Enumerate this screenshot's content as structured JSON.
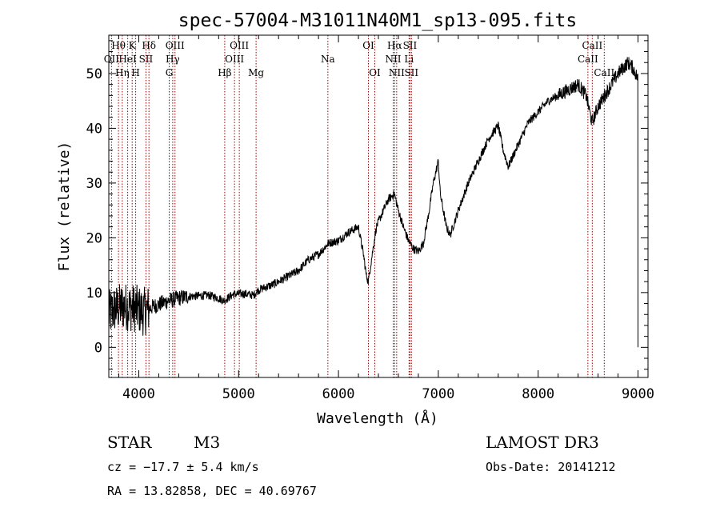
{
  "chart_data": {
    "type": "line",
    "title": "spec-57004-M31011N40M1_sp13-095.fits",
    "xlabel": "Wavelength (Å)",
    "ylabel": "Flux (relative)",
    "xlim": [
      3700,
      9100
    ],
    "ylim": [
      -5.5,
      57
    ],
    "xticks": [
      4000,
      5000,
      6000,
      7000,
      8000,
      9000
    ],
    "yticks": [
      0,
      10,
      20,
      30,
      40,
      50
    ],
    "line_color": "#000000",
    "marker_color": "#a00000",
    "spectrum_anchors": [
      [
        3700,
        6
      ],
      [
        3760,
        7
      ],
      [
        3850,
        7.5
      ],
      [
        3950,
        7.2
      ],
      [
        4050,
        6.5
      ],
      [
        4150,
        7.5
      ],
      [
        4300,
        8.5
      ],
      [
        4400,
        9
      ],
      [
        4500,
        9.3
      ],
      [
        4700,
        9.5
      ],
      [
        4800,
        9
      ],
      [
        4850,
        8.5
      ],
      [
        4950,
        9.7
      ],
      [
        5050,
        9.8
      ],
      [
        5150,
        9.5
      ],
      [
        5200,
        10.5
      ],
      [
        5350,
        11.5
      ],
      [
        5500,
        13
      ],
      [
        5600,
        14
      ],
      [
        5700,
        16
      ],
      [
        5800,
        17
      ],
      [
        5900,
        19
      ],
      [
        6000,
        19.5
      ],
      [
        6100,
        21
      ],
      [
        6200,
        22
      ],
      [
        6250,
        17
      ],
      [
        6280,
        13
      ],
      [
        6300,
        12
      ],
      [
        6330,
        16
      ],
      [
        6380,
        22
      ],
      [
        6450,
        25
      ],
      [
        6500,
        27
      ],
      [
        6560,
        28
      ],
      [
        6600,
        25
      ],
      [
        6650,
        22
      ],
      [
        6700,
        19.5
      ],
      [
        6750,
        18
      ],
      [
        6800,
        17.5
      ],
      [
        6850,
        19
      ],
      [
        6900,
        24
      ],
      [
        6950,
        30
      ],
      [
        7000,
        34
      ],
      [
        7020,
        28
      ],
      [
        7080,
        22
      ],
      [
        7120,
        20.5
      ],
      [
        7200,
        25
      ],
      [
        7300,
        30
      ],
      [
        7400,
        34
      ],
      [
        7500,
        38
      ],
      [
        7600,
        40.5
      ],
      [
        7650,
        36
      ],
      [
        7700,
        33
      ],
      [
        7800,
        37
      ],
      [
        7900,
        41
      ],
      [
        8000,
        43
      ],
      [
        8100,
        45
      ],
      [
        8200,
        46
      ],
      [
        8300,
        47
      ],
      [
        8400,
        48
      ],
      [
        8480,
        46
      ],
      [
        8540,
        41
      ],
      [
        8600,
        44
      ],
      [
        8700,
        47
      ],
      [
        8800,
        50
      ],
      [
        8900,
        52
      ],
      [
        8950,
        51
      ],
      [
        9000,
        49
      ]
    ],
    "spectral_lines": [
      {
        "label": "Hθ",
        "wavelength": 3797,
        "row": 1
      },
      {
        "label": "OII",
        "wavelength": 3727,
        "row": 2
      },
      {
        "label": "Hη",
        "wavelength": 3835,
        "row": 3
      },
      {
        "label": "K",
        "wavelength": 3934,
        "row": 1
      },
      {
        "label": "HeI",
        "wavelength": 3889,
        "row": 2
      },
      {
        "label": "H",
        "wavelength": 3969,
        "row": 3
      },
      {
        "label": "Hδ",
        "wavelength": 4102,
        "row": 1
      },
      {
        "label": "SII",
        "wavelength": 4072,
        "row": 2
      },
      {
        "label": "OIII",
        "wavelength": 4363,
        "row": 1
      },
      {
        "label": "Hγ",
        "wavelength": 4340,
        "row": 2
      },
      {
        "label": "G",
        "wavelength": 4305,
        "row": 3
      },
      {
        "label": "OIII",
        "wavelength": 5007,
        "row": 1
      },
      {
        "label": "OIII",
        "wavelength": 4959,
        "row": 2
      },
      {
        "label": "Hβ",
        "wavelength": 4861,
        "row": 3
      },
      {
        "label": "Mg",
        "wavelength": 5175,
        "row": 3
      },
      {
        "label": "Na",
        "wavelength": 5894,
        "row": 2
      },
      {
        "label": "OI",
        "wavelength": 6300,
        "row": 1
      },
      {
        "label": "OI",
        "wavelength": 6364,
        "row": 3
      },
      {
        "label": "Hα",
        "wavelength": 6563,
        "row": 1
      },
      {
        "label": "SII",
        "wavelength": 6716,
        "row": 1
      },
      {
        "label": "NII",
        "wavelength": 6548,
        "row": 2
      },
      {
        "label": "Li",
        "wavelength": 6707,
        "row": 2
      },
      {
        "label": "NII",
        "wavelength": 6583,
        "row": 3
      },
      {
        "label": "SII",
        "wavelength": 6731,
        "row": 3
      },
      {
        "label": "CaII",
        "wavelength": 8542,
        "row": 1
      },
      {
        "label": "CaII",
        "wavelength": 8498,
        "row": 2
      },
      {
        "label": "CaII",
        "wavelength": 8662,
        "row": 3
      }
    ]
  },
  "info": {
    "class": "STAR",
    "subclass": "M3",
    "survey": "LAMOST DR3",
    "cz": "cz = −17.7 ± 5.4 km/s",
    "obs_date": "Obs-Date: 20141212",
    "coords": "RA =  13.82858, DEC =  40.69767"
  }
}
